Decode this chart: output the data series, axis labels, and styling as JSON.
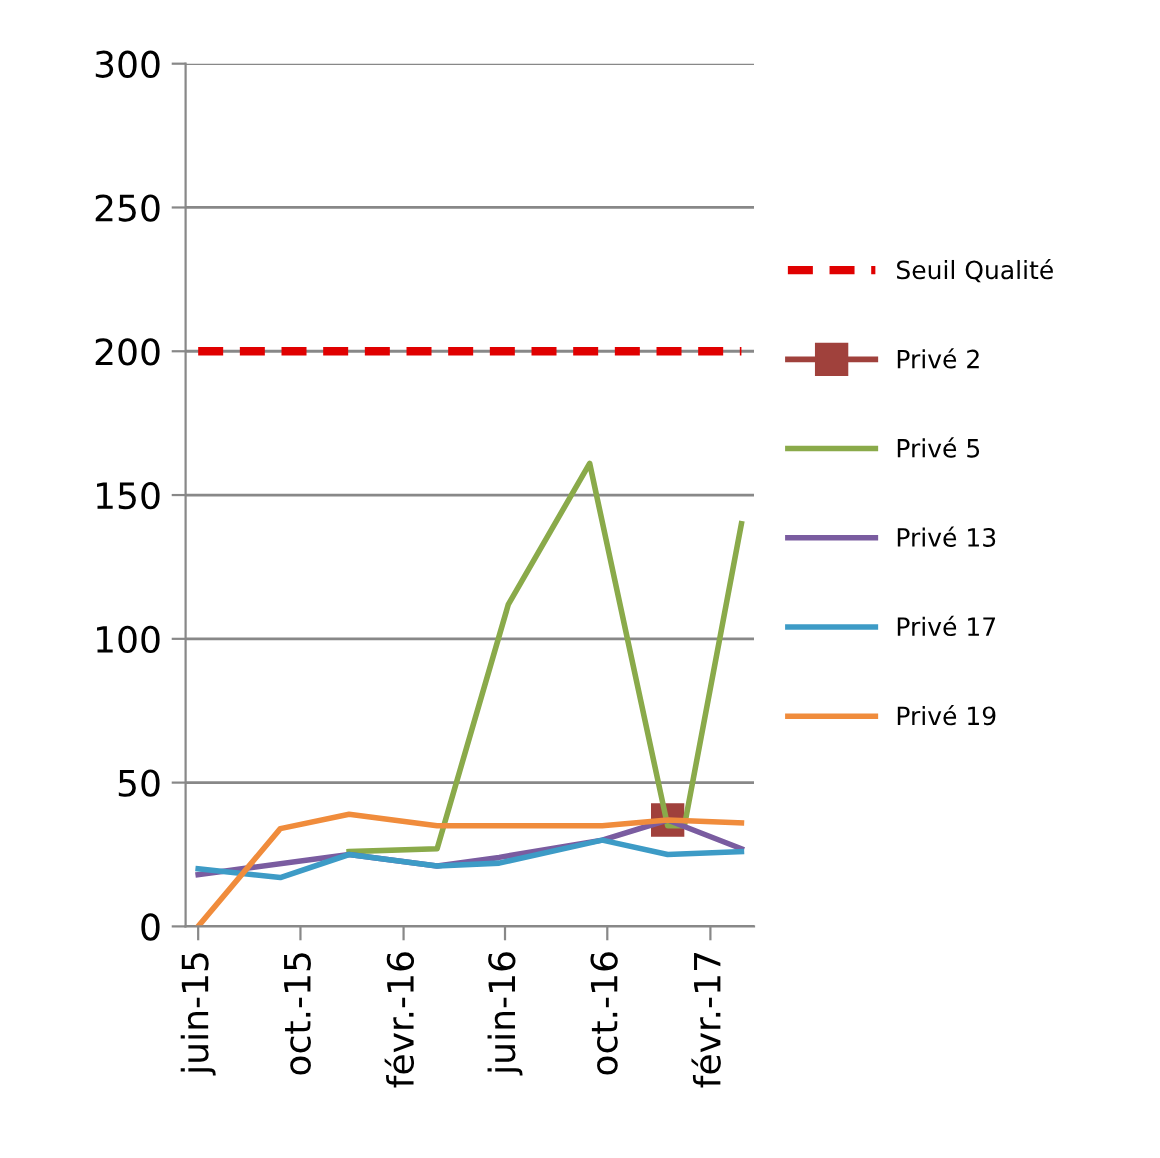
{
  "chart_data": {
    "type": "line",
    "series": [
      {
        "name": "Seuil Qualité",
        "color": "#e00000",
        "line_style": "dashed",
        "x": [
          "2015-06-01",
          "2017-03-10"
        ],
        "values": [
          200,
          200
        ]
      },
      {
        "name": "Privé 2",
        "color": "#a0413c",
        "marker": "square",
        "x": [
          "2016-12-12"
        ],
        "values": [
          37
        ]
      },
      {
        "name": "Privé 5",
        "color": "#8aaa4a",
        "x": [
          "2015-11-28",
          "2016-03-12",
          "2016-06-05",
          "2016-09-10",
          "2016-12-12",
          "2017-01-01",
          "2017-03-10"
        ],
        "values": [
          26,
          27,
          112,
          161,
          35,
          35,
          140
        ]
      },
      {
        "name": "Privé 13",
        "color": "#7a5ca0",
        "x": [
          "2015-06-01",
          "2015-11-28",
          "2016-03-12",
          "2016-05-25",
          "2016-09-25",
          "2016-12-12",
          "2017-03-10"
        ],
        "values": [
          18,
          25,
          21,
          24,
          30,
          37,
          27
        ]
      },
      {
        "name": "Privé 17",
        "color": "#3d9bc6",
        "x": [
          "2015-06-01",
          "2015-09-07",
          "2015-11-28",
          "2016-03-12",
          "2016-05-25",
          "2016-09-25",
          "2016-12-12",
          "2017-03-10"
        ],
        "values": [
          20,
          17,
          25,
          21,
          22,
          30,
          25,
          26
        ]
      },
      {
        "name": "Privé 19",
        "color": "#f08c3c",
        "x": [
          "2015-06-01",
          "2015-09-07",
          "2015-11-28",
          "2016-03-12",
          "2016-09-25",
          "2016-12-12",
          "2017-03-10"
        ],
        "values": [
          0,
          34,
          39,
          35,
          35,
          37,
          36
        ]
      }
    ],
    "xlim": [
      "2015-05-17",
      "2017-03-25"
    ],
    "xticks": [
      {
        "value": "2015-06-01",
        "label": "juin-15"
      },
      {
        "value": "2015-10-01",
        "label": "oct.-15"
      },
      {
        "value": "2016-02-01",
        "label": "févr.-16"
      },
      {
        "value": "2016-06-01",
        "label": "juin-16"
      },
      {
        "value": "2016-10-01",
        "label": "oct.-16"
      },
      {
        "value": "2017-02-01",
        "label": "févr.-17"
      }
    ],
    "ylim": [
      0,
      300
    ],
    "yticks": [
      0,
      50,
      100,
      150,
      200,
      250,
      300
    ],
    "grid": "y",
    "legend": "right"
  }
}
